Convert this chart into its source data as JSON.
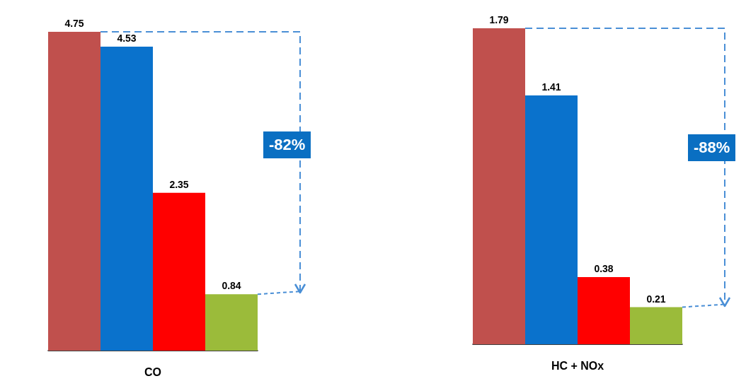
{
  "chart_data": [
    {
      "type": "bar",
      "xlabel": "CO",
      "categories": [
        null,
        null,
        null,
        null
      ],
      "values": [
        4.75,
        4.53,
        2.35,
        0.84
      ],
      "colors": [
        "#c0504d",
        "#0a72cc",
        "#ff0000",
        "#9bbb3a"
      ],
      "data_labels": true,
      "tick_labels": false,
      "annotations": [
        "-82%"
      ]
    },
    {
      "type": "bar",
      "xlabel": "HC + NOx",
      "categories": [
        null,
        null,
        null,
        null
      ],
      "values": [
        1.79,
        1.41,
        0.38,
        0.21
      ],
      "colors": [
        "#c0504d",
        "#0a72cc",
        "#ff0000",
        "#9bbb3a"
      ],
      "data_labels": true,
      "tick_labels": false,
      "annotations": [
        "-88%"
      ]
    }
  ]
}
